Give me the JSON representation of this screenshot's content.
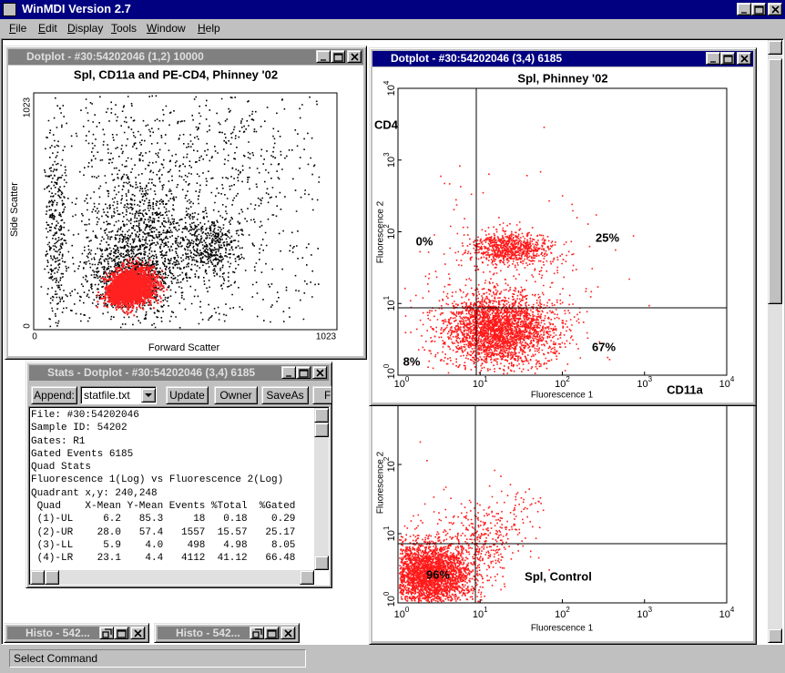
{
  "app_title": "WinMDI Version 2.7",
  "menu": [
    "File",
    "Edit",
    "Display",
    "Tools",
    "Window",
    "Help"
  ],
  "dotplot1": {
    "title": "Dotplot - #30:54202046 (1,2) 10000",
    "plot_title": "Spl, CD11a and PE-CD4, Phinney '02",
    "y_label": "Side Scatter",
    "x_label": "Forward Scatter",
    "y_max": "1023",
    "y_min": "0",
    "x_min": "0",
    "x_max": "1023"
  },
  "dotplot2": {
    "title": "Dotplot - #30:54202046 (3,4) 6185",
    "plot_title": "Spl, Phinney '02",
    "y_label": "Fluorescence 2",
    "x_label": "Fluorescence 1",
    "y_marker": "CD4",
    "x_marker": "CD11a",
    "tick_base": "10",
    "x_tick_exps": [
      "0",
      "1",
      "2",
      "3",
      "4"
    ],
    "y_tick_exps": [
      "0",
      "1",
      "2",
      "3",
      "4"
    ],
    "quadrants": [
      "0%",
      "25%",
      "8%",
      "67%"
    ]
  },
  "dotplot3": {
    "y_label": "Fluorescence 2",
    "x_label": "Fluorescence 1",
    "tick_base": "10",
    "x_tick_exps": [
      "0",
      "1",
      "2",
      "3",
      "4"
    ],
    "y_tick_exps": [
      "0",
      "1",
      "2"
    ],
    "quadrant": "96%",
    "annotation": "Spl, Control"
  },
  "stats": {
    "title": "Stats - Dotplot - #30:54202046 (3,4) 6185",
    "buttons": [
      "Append:",
      "Update",
      "Owner",
      "SaveAs",
      "F"
    ],
    "file": "statfile.txt",
    "lines": [
      "File: #30:54202046",
      "Sample ID: 54202",
      "Gates: R1",
      "Gated Events 6185",
      "Quad Stats",
      "Fluorescence 1(Log) vs Fluorescence 2(Log)",
      "Quadrant x,y: 240,248"
    ],
    "table": {
      "header": [
        "Quad",
        "X-Mean",
        "Y-Mean",
        "Events",
        "%Total",
        "%Gated"
      ],
      "rows": [
        [
          "(1)-UL",
          "6.2",
          "85.3",
          "18",
          "0.18",
          "0.29"
        ],
        [
          "(2)-UR",
          "28.0",
          "57.4",
          "1557",
          "15.57",
          "25.17"
        ],
        [
          "(3)-LL",
          "5.9",
          "4.0",
          "498",
          "4.98",
          "8.05"
        ],
        [
          "(4)-LR",
          "23.1",
          "4.4",
          "4112",
          "41.12",
          "66.48"
        ]
      ]
    }
  },
  "minimized": [
    "Histo - 542...",
    "Histo - 542..."
  ],
  "status": "Select Command"
}
